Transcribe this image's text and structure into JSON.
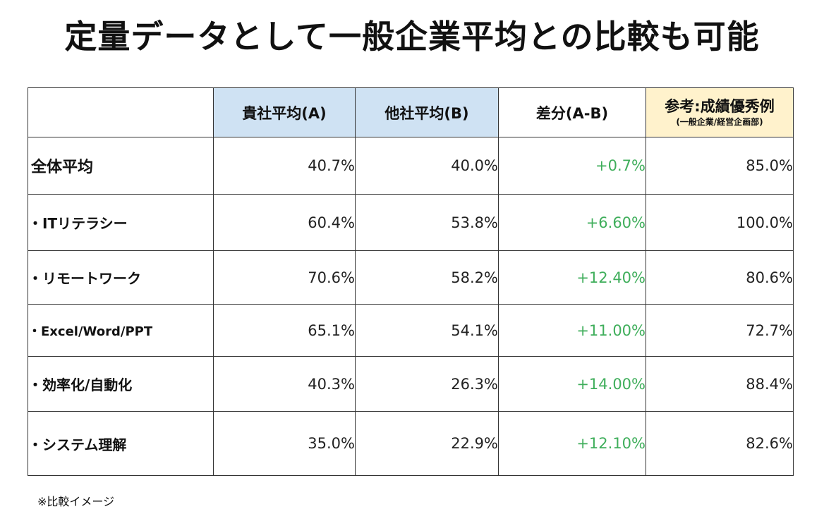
{
  "title": "定量データとして一般企業平均との比較も可能",
  "table": {
    "headers": {
      "blank": "",
      "col_a": "貴社平均(A)",
      "col_b": "他社平均(B)",
      "col_diff": "差分(A-B)",
      "col_ref": "参考:成績優秀例",
      "col_ref_sub": "(一般企業/経営企画部)"
    },
    "rows": [
      {
        "label": "全体平均",
        "a": "40.7%",
        "b": "40.0%",
        "diff": "+0.7%",
        "ref": "85.0%"
      },
      {
        "label": "・ITリテラシー",
        "a": "60.4%",
        "b": "53.8%",
        "diff": "+6.60%",
        "ref": "100.0%"
      },
      {
        "label": "・リモートワーク",
        "a": "70.6%",
        "b": "58.2%",
        "diff": "+12.40%",
        "ref": "80.6%"
      },
      {
        "label": "・Excel/Word/PPT",
        "a": "65.1%",
        "b": "54.1%",
        "diff": "+11.00%",
        "ref": "72.7%"
      },
      {
        "label": "・効率化/自動化",
        "a": "40.3%",
        "b": "26.3%",
        "diff": "+14.00%",
        "ref": "88.4%"
      },
      {
        "label": "・システム理解",
        "a": "35.0%",
        "b": "22.9%",
        "diff": "+12.10%",
        "ref": "82.6%"
      }
    ]
  },
  "note": "※比較イメージ",
  "colors": {
    "header_blue": "#cfe2f3",
    "header_yellow": "#fff2cc",
    "diff_green": "#3fae5b",
    "border": "#333333"
  }
}
